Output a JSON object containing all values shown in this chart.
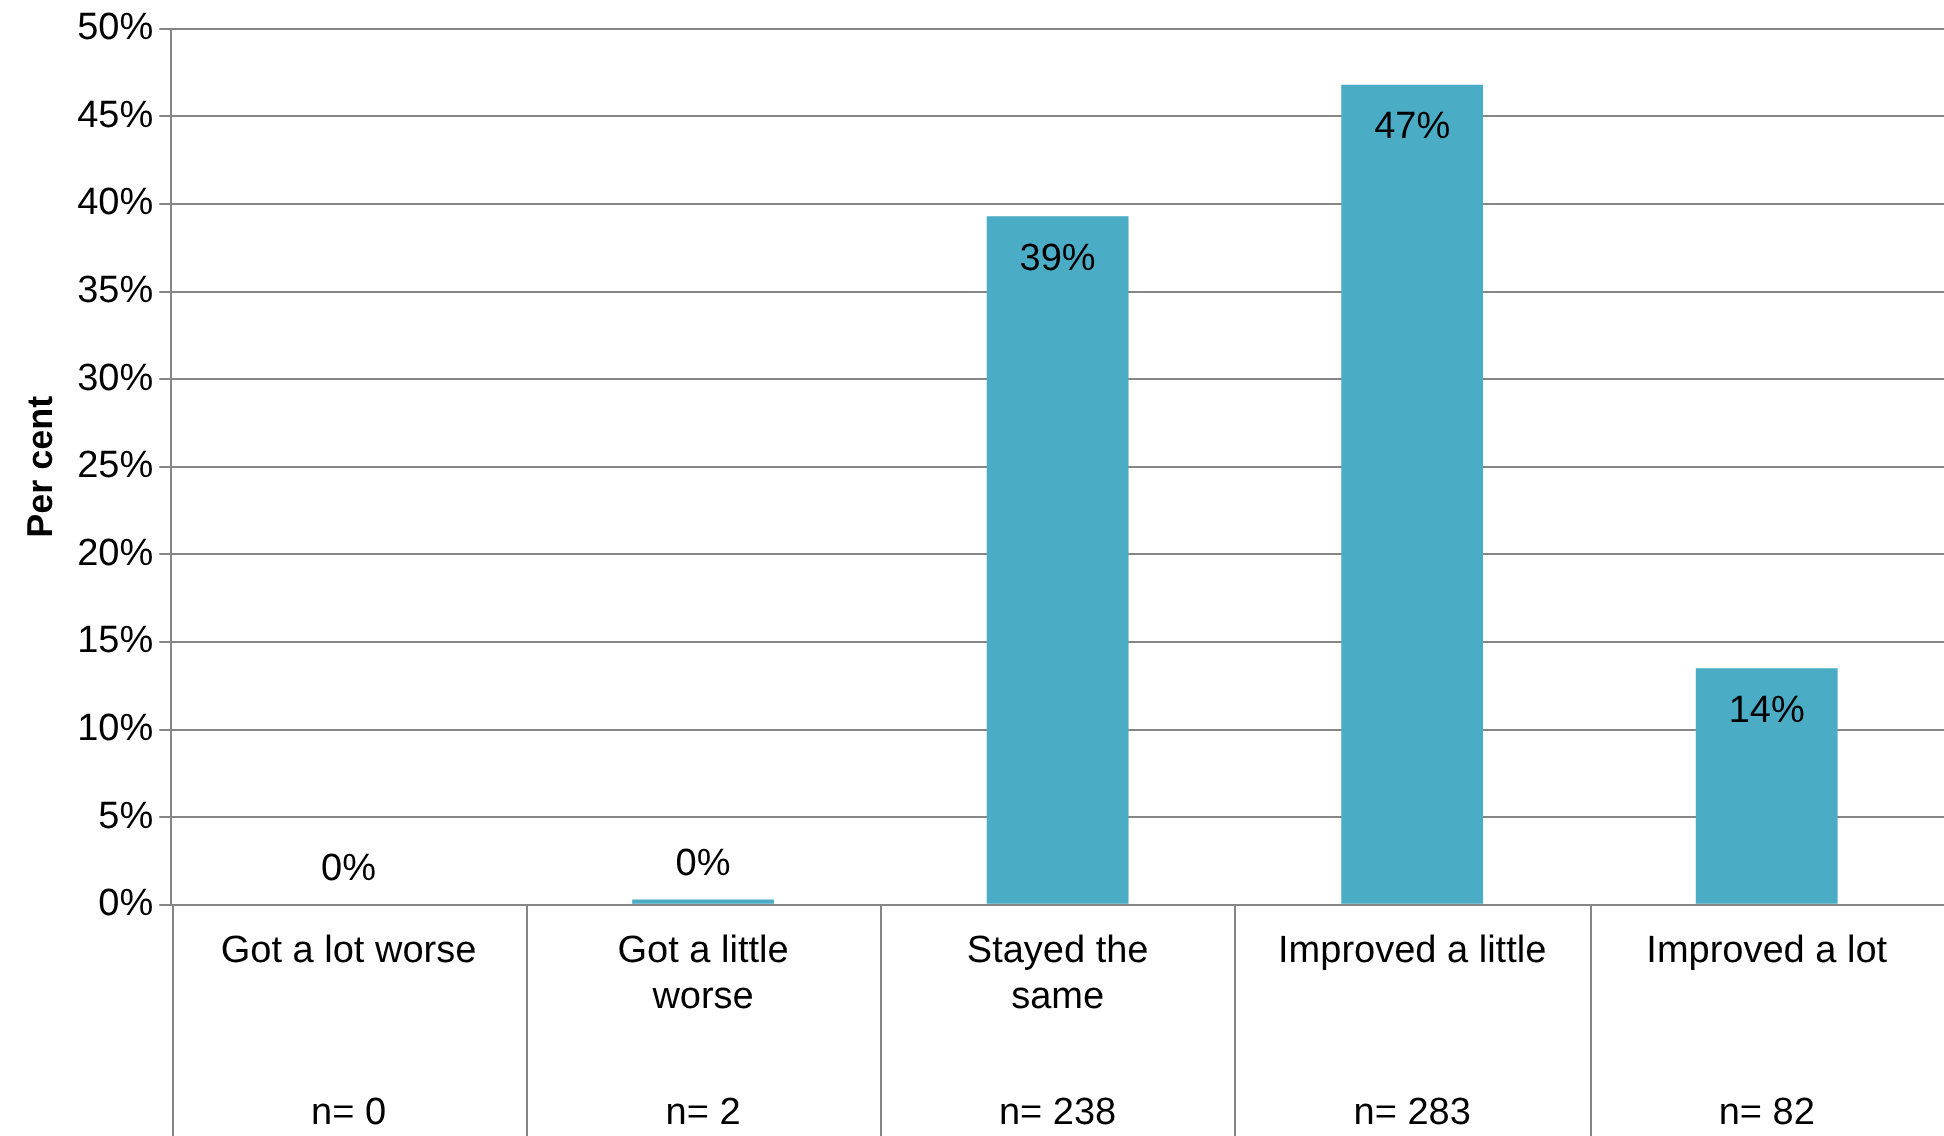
{
  "chart_data": {
    "type": "bar",
    "ylabel": "Per cent",
    "categories": [
      "Got a lot worse",
      "Got a little worse",
      "Stayed the same",
      "Improved a little",
      "Improved a lot"
    ],
    "values": [
      0,
      0.3,
      39.3,
      46.8,
      13.5
    ],
    "value_labels": [
      "0%",
      "0%",
      "39%",
      "47%",
      "14%"
    ],
    "color": "#4bacc6",
    "ylim": [
      0,
      50
    ],
    "yticks": [
      {
        "value": 0,
        "label": "0%"
      },
      {
        "value": 5,
        "label": "5%"
      },
      {
        "value": 10,
        "label": "10%"
      },
      {
        "value": 15,
        "label": "15%"
      },
      {
        "value": 20,
        "label": "20%"
      },
      {
        "value": 25,
        "label": "25%"
      },
      {
        "value": 30,
        "label": "30%"
      },
      {
        "value": 35,
        "label": "35%"
      },
      {
        "value": 40,
        "label": "40%"
      },
      {
        "value": 45,
        "label": "45%"
      },
      {
        "value": 50,
        "label": "50%"
      }
    ],
    "grid": "y",
    "legend": false,
    "annotations": [
      "n= 0",
      "n= 2",
      "n= 238",
      "n= 283",
      "n= 82"
    ]
  }
}
